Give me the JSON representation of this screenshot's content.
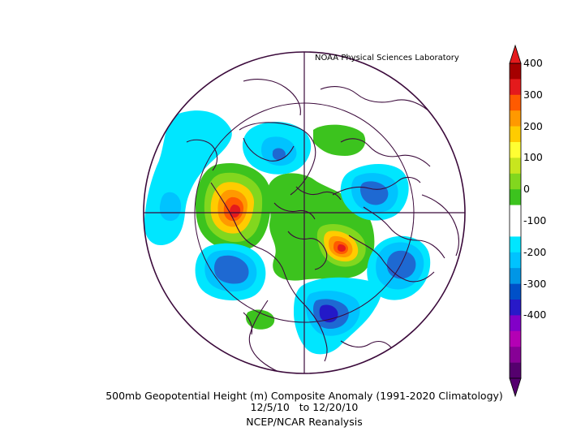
{
  "credit": "NOAA Physical Sciences Laboratory",
  "caption": {
    "title": "500mb Geopotential Height (m) Composite Anomaly (1991-2020 Climatology)",
    "dates": "12/5/10   to 12/20/10",
    "source": "NCEP/NCAR Reanalysis"
  },
  "colorbar": {
    "labels": [
      "400",
      "300",
      "200",
      "100",
      "0",
      "-100",
      "-200",
      "-300",
      "-400"
    ],
    "colors": [
      "#a50000",
      "#e41a1c",
      "#ff5a00",
      "#ff9900",
      "#ffcc00",
      "#ffff33",
      "#c8e61e",
      "#82d71e",
      "#3cc31e",
      "#ffffff",
      "#ffffff",
      "#00e6ff",
      "#00c3ff",
      "#0096e6",
      "#0050c8",
      "#2819c8",
      "#8200c8",
      "#b400b4",
      "#870096",
      "#55006e"
    ]
  },
  "map": {
    "colors": {
      "neg100": "#00e6ff",
      "neg150": "#00c3ff",
      "neg200": "#1e69d2",
      "neg250": "#2319c8",
      "pos50": "#3cc31e",
      "pos100": "#82d71e",
      "pos150": "#ffcc00",
      "pos200": "#ff9900",
      "pos250": "#ff5a00",
      "pos300": "#e41a1c",
      "outline": "#3b0a3b"
    }
  }
}
